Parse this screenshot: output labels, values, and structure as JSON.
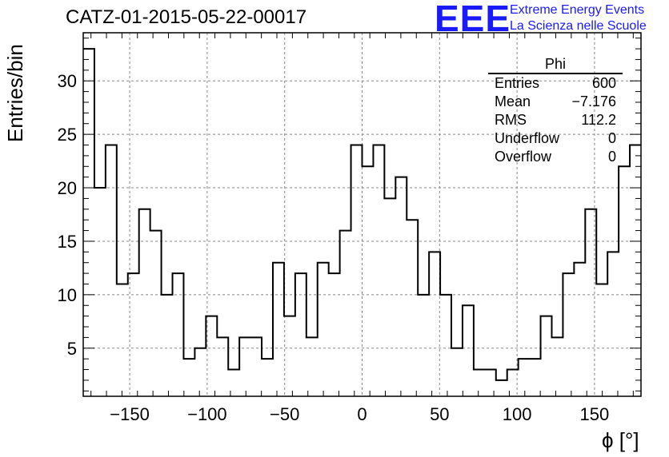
{
  "title": "CATZ-01-2015-05-22-00017",
  "logo": {
    "text": "EEE",
    "line1": "Extreme Energy Events",
    "line2": "La Scienza nelle Scuole",
    "color": "#1a1aff"
  },
  "stats": {
    "name": "Phi",
    "rows": [
      {
        "label": "Entries",
        "value": "600"
      },
      {
        "label": "Mean",
        "value": "−7.176"
      },
      {
        "label": "RMS",
        "value": "112.2"
      },
      {
        "label": "Underflow",
        "value": "0"
      },
      {
        "label": "Overflow",
        "value": "0"
      }
    ]
  },
  "chart_data": {
    "type": "bar",
    "style": "step-histogram",
    "xlabel": "ϕ [°]",
    "ylabel": "Entries/bin",
    "xlim": [
      -180,
      180
    ],
    "ylim": [
      0.5,
      34.5
    ],
    "grid": true,
    "bin_edges": [
      -180,
      -172.8,
      -165.6,
      -158.4,
      -151.2,
      -144,
      -136.8,
      -129.6,
      -122.4,
      -115.2,
      -108,
      -100.8,
      -93.6,
      -86.4,
      -79.2,
      -72,
      -64.8,
      -57.6,
      -50.4,
      -43.2,
      -36,
      -28.8,
      -21.6,
      -14.4,
      -7.2,
      0,
      7.2,
      14.4,
      21.6,
      28.8,
      36,
      43.2,
      50.4,
      57.6,
      64.8,
      72,
      79.2,
      86.4,
      93.6,
      100.8,
      108,
      115.2,
      122.4,
      129.6,
      136.8,
      144,
      151.2,
      158.4,
      165.6,
      172.8,
      180
    ],
    "values": [
      33,
      20,
      24,
      11,
      12,
      18,
      16,
      10,
      12,
      4,
      5,
      8,
      6,
      3,
      6,
      6,
      4,
      13,
      8,
      12,
      6,
      13,
      12,
      16,
      24,
      22,
      24,
      19,
      21,
      17,
      10,
      14,
      10,
      5,
      9,
      3,
      3,
      2,
      3,
      4,
      4,
      8,
      6,
      12,
      13,
      18,
      11,
      14,
      22,
      24
    ],
    "x_ticks": [
      -150,
      -100,
      -50,
      0,
      50,
      100,
      150
    ],
    "x_tick_labels": [
      "−150",
      "−100",
      "−50",
      "0",
      "50",
      "100",
      "150"
    ],
    "y_ticks": [
      5,
      10,
      15,
      20,
      25,
      30
    ],
    "y_tick_labels": [
      "5",
      "10",
      "15",
      "20",
      "25",
      "30"
    ]
  }
}
